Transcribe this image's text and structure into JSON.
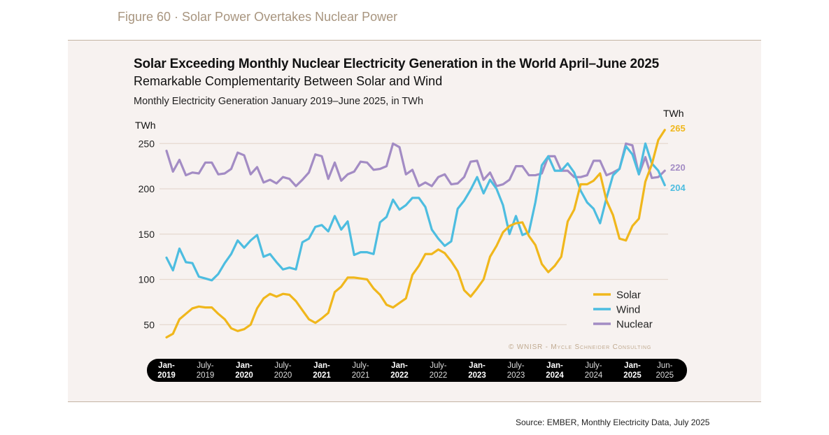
{
  "figure_caption": "Figure 60 · Solar Power Overtakes Nuclear Power",
  "source": "Source: EMBER, Monthly Electricity Data, July 2025",
  "chart_data": {
    "type": "line",
    "title": "Solar Exceeding  Monthly Nuclear Electricity Generation in the World  April–June 2025",
    "subtitle": "Remarkable Complementarity Between Solar and Wind",
    "description": "Monthly Electricity Generation January 2019–June 2025, in TWh",
    "ylabel": "TWh",
    "ylabel_right": "TWh",
    "yticks": [
      50,
      100,
      150,
      200,
      250
    ],
    "ylim": [
      30,
      270
    ],
    "x_start": "2019-01",
    "x_end": "2025-06",
    "grid": true,
    "legend_placement": "bottom-right",
    "copyright": "© WNISR - Mycle Schneider Consulting",
    "xticks": [
      {
        "line1": "Jan-",
        "line2": "2019",
        "month": "2019-01",
        "major": true
      },
      {
        "line1": "July-",
        "line2": "2019",
        "month": "2019-07",
        "major": false
      },
      {
        "line1": "Jan-",
        "line2": "2020",
        "month": "2020-01",
        "major": true
      },
      {
        "line1": "July-",
        "line2": "2020",
        "month": "2020-07",
        "major": false
      },
      {
        "line1": "Jan-",
        "line2": "2021",
        "month": "2021-01",
        "major": true
      },
      {
        "line1": "July-",
        "line2": "2021",
        "month": "2021-07",
        "major": false
      },
      {
        "line1": "Jan-",
        "line2": "2022",
        "month": "2022-01",
        "major": true
      },
      {
        "line1": "July-",
        "line2": "2022",
        "month": "2022-07",
        "major": false
      },
      {
        "line1": "Jan-",
        "line2": "2023",
        "month": "2023-01",
        "major": true
      },
      {
        "line1": "July-",
        "line2": "2023",
        "month": "2023-07",
        "major": false
      },
      {
        "line1": "Jan-",
        "line2": "2024",
        "month": "2024-01",
        "major": true
      },
      {
        "line1": "July-",
        "line2": "2024",
        "month": "2024-07",
        "major": false
      },
      {
        "line1": "Jan-",
        "line2": "2025",
        "month": "2025-01",
        "major": true
      },
      {
        "line1": "Jun-",
        "line2": "2025",
        "month": "2025-06",
        "major": false
      }
    ],
    "series": [
      {
        "name": "Solar",
        "color": "#f0b71c",
        "end_label": "265",
        "values": [
          36,
          40,
          56,
          62,
          68,
          70,
          69,
          69,
          62,
          56,
          46,
          43,
          45,
          50,
          68,
          79,
          84,
          81,
          84,
          83,
          76,
          66,
          56,
          52,
          57,
          63,
          86,
          92,
          102,
          102,
          101,
          100,
          90,
          83,
          72,
          69,
          74,
          79,
          105,
          115,
          128,
          128,
          133,
          129,
          120,
          109,
          88,
          81,
          90,
          100,
          125,
          137,
          152,
          159,
          162,
          163,
          148,
          138,
          117,
          108,
          115,
          125,
          164,
          177,
          205,
          205,
          209,
          217,
          187,
          171,
          145,
          143,
          159,
          167,
          208,
          227,
          254,
          265
        ]
      },
      {
        "name": "Wind",
        "color": "#4dbde0",
        "end_label": "204",
        "values": [
          124,
          110,
          134,
          119,
          118,
          103,
          101,
          99,
          106,
          118,
          128,
          143,
          135,
          143,
          149,
          125,
          128,
          119,
          111,
          113,
          111,
          141,
          145,
          158,
          160,
          153,
          170,
          155,
          164,
          127,
          130,
          130,
          128,
          163,
          169,
          188,
          177,
          182,
          190,
          190,
          180,
          155,
          145,
          137,
          142,
          178,
          187,
          199,
          213,
          195,
          210,
          200,
          182,
          150,
          170,
          149,
          152,
          185,
          226,
          236,
          220,
          220,
          228,
          218,
          198,
          185,
          178,
          162,
          190,
          215,
          222,
          247,
          238,
          216,
          250,
          228,
          220,
          204
        ]
      },
      {
        "name": "Nuclear",
        "color": "#a38cc4",
        "end_label": "220",
        "values": [
          242,
          219,
          232,
          215,
          218,
          217,
          229,
          229,
          216,
          217,
          222,
          240,
          237,
          216,
          224,
          207,
          210,
          206,
          213,
          211,
          203,
          210,
          218,
          238,
          236,
          211,
          229,
          209,
          216,
          219,
          230,
          229,
          221,
          222,
          225,
          250,
          246,
          216,
          221,
          203,
          207,
          203,
          213,
          216,
          205,
          206,
          213,
          230,
          231,
          210,
          218,
          203,
          205,
          210,
          225,
          225,
          215,
          215,
          217,
          236,
          236,
          220,
          220,
          213,
          213,
          215,
          231,
          231,
          215,
          218,
          222,
          250,
          248,
          216,
          235,
          212,
          213,
          220
        ]
      }
    ]
  }
}
